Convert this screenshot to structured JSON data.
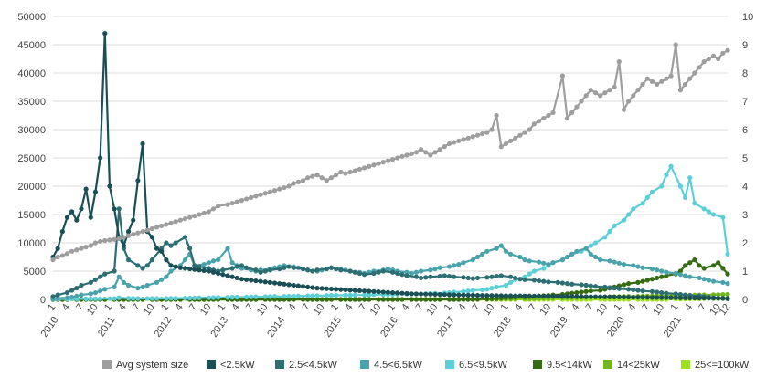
{
  "chart_data": {
    "type": "line",
    "title": "",
    "xlabel": "",
    "ylabel": "",
    "ylim_left": [
      0,
      50000
    ],
    "ylim_right": [
      0,
      10
    ],
    "yticks_left": [
      "0",
      "5000",
      "10000",
      "15000",
      "20000",
      "25000",
      "30000",
      "35000",
      "40000",
      "45000",
      "50000"
    ],
    "yticks_right": [
      "0",
      "1",
      "2",
      "3",
      "4",
      "5",
      "6",
      "7",
      "8",
      "9",
      "10"
    ],
    "grid": true,
    "legend_position": "bottom",
    "x_start": "2010-01",
    "x_end": "2021-12",
    "x_tick_months": [
      "1",
      "4",
      "7",
      "10"
    ],
    "x_tick_last": "12",
    "year_labels": [
      "2010",
      "2011",
      "2012",
      "2013",
      "2014",
      "2015",
      "2016",
      "2017",
      "2018",
      "2019",
      "2020",
      "2021"
    ],
    "series": [
      {
        "name": "Avg system size",
        "axis": "right",
        "color": "#9e9e9e",
        "values": [
          1.4,
          1.5,
          1.55,
          1.62,
          1.7,
          1.75,
          1.8,
          1.85,
          1.9,
          2.0,
          2.05,
          2.08,
          2.1,
          2.12,
          2.15,
          2.2,
          2.25,
          2.3,
          2.35,
          2.4,
          2.45,
          2.5,
          2.55,
          2.6,
          2.65,
          2.7,
          2.75,
          2.8,
          2.85,
          2.9,
          2.95,
          3.0,
          3.05,
          3.1,
          3.2,
          3.3,
          3.35,
          3.4,
          3.45,
          3.5,
          3.55,
          3.6,
          3.65,
          3.7,
          3.75,
          3.8,
          3.85,
          3.9,
          3.95,
          4.0,
          4.1,
          4.15,
          4.2,
          4.3,
          4.35,
          4.4,
          4.3,
          4.2,
          4.3,
          4.4,
          4.5,
          4.45,
          4.5,
          4.55,
          4.6,
          4.65,
          4.7,
          4.75,
          4.8,
          4.85,
          4.9,
          4.95,
          5.0,
          5.05,
          5.1,
          5.15,
          5.2,
          5.3,
          5.2,
          5.1,
          5.2,
          5.3,
          5.4,
          5.5,
          5.55,
          5.6,
          5.65,
          5.7,
          5.75,
          5.8,
          5.85,
          5.9,
          6.0,
          6.5,
          5.4,
          5.5,
          5.6,
          5.7,
          5.8,
          5.9,
          6.0,
          6.2,
          6.3,
          6.4,
          6.5,
          6.6,
          7.9,
          6.4,
          6.6,
          6.8,
          7.0,
          7.2,
          7.4,
          7.3,
          7.2,
          7.3,
          7.4,
          7.5,
          8.4,
          6.7,
          7.0,
          7.2,
          7.4,
          7.6,
          7.8,
          7.7,
          7.6,
          7.7,
          7.8,
          7.9,
          9.0,
          7.4,
          7.6,
          7.8,
          8.0,
          8.2,
          8.4,
          8.5,
          8.6,
          8.5,
          8.7,
          8.8
        ],
        "note": "monthly values Jan 2010 – Dec 2021"
      },
      {
        "name": "<2.5kW",
        "axis": "left",
        "color": "#1a4f55",
        "values": [
          7500,
          9000,
          12000,
          14500,
          15500,
          14000,
          16000,
          19500,
          14500,
          19000,
          25000,
          47000,
          20000,
          16000,
          11000,
          9500,
          12000,
          14000,
          21000,
          27500,
          12000,
          11000,
          9000,
          8500,
          7000,
          6000,
          5800,
          5600,
          5500,
          5400,
          5300,
          5200,
          5100,
          5000,
          4800,
          4600,
          4400,
          4200,
          4000,
          3800,
          3600,
          3500,
          3400,
          3300,
          3200,
          3100,
          3000,
          2900,
          2800,
          2700,
          2600,
          2500,
          2400,
          2300,
          2200,
          2100,
          2000,
          1950,
          1900,
          1850,
          1800,
          1750,
          1700,
          1650,
          1600,
          1550,
          1500,
          1450,
          1400,
          1350,
          1300,
          1250,
          1200,
          1150,
          1100,
          1050,
          1000,
          980,
          960,
          940,
          920,
          900,
          880,
          860,
          840,
          820,
          800,
          780,
          760,
          740,
          720,
          700,
          690,
          680,
          670,
          660,
          650,
          640,
          630,
          620,
          610,
          600,
          590,
          580,
          570,
          560,
          550,
          540,
          530,
          520,
          510,
          500,
          490,
          480,
          470,
          460,
          450,
          440,
          430,
          420,
          410,
          400,
          390,
          380,
          370,
          360,
          350,
          340,
          330,
          320,
          310,
          300,
          290,
          280,
          270,
          260,
          250,
          240,
          230,
          220,
          210,
          200,
          190,
          180
        ]
      },
      {
        "name": "2.5<4.5kW",
        "axis": "left",
        "color": "#2d6e73",
        "values": [
          500,
          800,
          1200,
          1600,
          2000,
          2500,
          3000,
          3500,
          4000,
          4500,
          5000,
          16000,
          9000,
          7000,
          6000,
          5500,
          6000,
          7000,
          9000,
          10000,
          9500,
          10000,
          11000,
          9000,
          6000,
          5800,
          5500,
          5200,
          5000,
          5200,
          5500,
          5800,
          6000,
          5600,
          5200,
          4800,
          5000,
          5200,
          5400,
          5600,
          5800,
          5600,
          5400,
          5200,
          5000,
          5200,
          5400,
          5600,
          5400,
          5200,
          5000,
          4800,
          4600,
          4400,
          4600,
          4800,
          5000,
          4800,
          4600,
          4400,
          4200,
          4000,
          3800,
          3900,
          4000,
          4100,
          4200,
          4100,
          4000,
          3900,
          3800,
          3700,
          3800,
          3900,
          4000,
          4100,
          4200,
          4000,
          3800,
          3600,
          3500,
          3400,
          3300,
          3200,
          3100,
          3000,
          2900,
          2800,
          2700,
          2600,
          2500,
          2400,
          2300,
          2200,
          2100,
          2000,
          1900,
          1800,
          1700,
          1600,
          1500,
          1400,
          1300,
          1200,
          1100,
          1000,
          900,
          800,
          700,
          600,
          500,
          400,
          300,
          200,
          100
        ]
      },
      {
        "name": "4.5<6.5kW",
        "axis": "left",
        "color": "#4aa3ab",
        "values": [
          100,
          200,
          300,
          400,
          600,
          800,
          1000,
          1200,
          1500,
          1800,
          2200,
          4000,
          3000,
          2500,
          2000,
          2200,
          2500,
          3000,
          3500,
          4000,
          5000,
          6000,
          7000,
          8000,
          6000,
          6200,
          6500,
          6800,
          7000,
          9000,
          6500,
          6000,
          5500,
          5200,
          5000,
          5200,
          5400,
          5600,
          5800,
          6000,
          5800,
          5600,
          5400,
          5200,
          5000,
          5200,
          5400,
          5600,
          5400,
          5200,
          5000,
          4800,
          4600,
          4800,
          5000,
          5200,
          5400,
          5200,
          5000,
          4800,
          4600,
          4800,
          5000,
          5200,
          5400,
          5600,
          5800,
          6000,
          6200,
          6500,
          7000,
          7500,
          8000,
          8500,
          9000,
          9500,
          8500,
          8000,
          7500,
          7000,
          6800,
          6600,
          6400,
          6200,
          6500,
          7000,
          7500,
          8000,
          8500,
          9000,
          8000,
          7500,
          7000,
          6800,
          6600,
          6400,
          6200,
          6000,
          5800,
          5600,
          5400,
          5200,
          5000,
          4800,
          4600,
          4400,
          4200,
          4000,
          3800,
          3600,
          3400,
          3200,
          3000,
          2800
        ]
      },
      {
        "name": "6.5<9.5kW",
        "axis": "left",
        "color": "#5dcfd6",
        "values": [
          50,
          60,
          70,
          80,
          90,
          100,
          110,
          120,
          130,
          140,
          150,
          300,
          200,
          180,
          160,
          150,
          160,
          170,
          180,
          190,
          200,
          220,
          240,
          260,
          280,
          300,
          320,
          340,
          360,
          380,
          400,
          420,
          440,
          460,
          480,
          500,
          520,
          540,
          560,
          580,
          600,
          620,
          640,
          660,
          680,
          700,
          720,
          740,
          760,
          780,
          800,
          820,
          840,
          860,
          880,
          900,
          920,
          940,
          960,
          980,
          1000,
          1050,
          1100,
          1150,
          1200,
          1300,
          1400,
          1500,
          1600,
          1700,
          1800,
          2000,
          2200,
          2500,
          3000,
          3500,
          4000,
          4500,
          5000,
          5500,
          6000,
          6500,
          7000,
          7500,
          8000,
          8500,
          9000,
          9500,
          10000,
          11000,
          12000,
          13000,
          14000,
          15000,
          16000,
          17000,
          18000,
          19000,
          20000,
          22000,
          23500,
          20000,
          18000,
          21500,
          17000,
          16000,
          15500,
          15000,
          14500,
          8000
        ]
      },
      {
        "name": "9.5<14kW",
        "axis": "left",
        "color": "#356b12",
        "values": [
          0,
          0,
          0,
          0,
          0,
          0,
          0,
          0,
          0,
          0,
          0,
          0,
          0,
          0,
          0,
          0,
          0,
          0,
          0,
          0,
          0,
          0,
          0,
          0,
          0,
          0,
          0,
          0,
          0,
          0,
          0,
          0,
          0,
          0,
          0,
          0,
          0,
          0,
          0,
          0,
          0,
          0,
          0,
          0,
          0,
          0,
          0,
          0,
          0,
          0,
          0,
          0,
          0,
          0,
          0,
          0,
          0,
          0,
          0,
          0,
          0,
          0,
          0,
          0,
          0,
          0,
          0,
          0,
          0,
          0,
          0,
          0,
          0,
          0,
          0,
          0,
          0,
          0,
          0,
          50,
          100,
          150,
          200,
          250,
          300,
          350,
          400,
          450,
          500,
          550,
          600,
          650,
          700,
          800,
          900,
          1000,
          1100,
          1200,
          1300,
          1400,
          1500,
          1600,
          1800,
          2000,
          2200,
          2400,
          2600,
          2800,
          3000,
          3200,
          3400,
          3600,
          3800,
          4000,
          4200,
          4500,
          5000,
          6000,
          6500,
          7000,
          6000,
          5500,
          6000,
          6500,
          5500,
          4500
        ]
      },
      {
        "name": "14<25kW",
        "axis": "left",
        "color": "#72b61f",
        "values": [
          0,
          0,
          0,
          0,
          0,
          0,
          0,
          0,
          0,
          0,
          0,
          0,
          0,
          0,
          0,
          0,
          0,
          0,
          0,
          0,
          0,
          0,
          0,
          0,
          0,
          0,
          0,
          0,
          0,
          0,
          0,
          0,
          0,
          0,
          0,
          0,
          0,
          0,
          0,
          0,
          0,
          0,
          0,
          0,
          0,
          0,
          0,
          0,
          0,
          0,
          0,
          0,
          0,
          0,
          0,
          0,
          0,
          0,
          0,
          0,
          0,
          0,
          0,
          0,
          0,
          0,
          0,
          0,
          0,
          0,
          0,
          0,
          0,
          0,
          0,
          0,
          0,
          0,
          0,
          0,
          0,
          20,
          40,
          60,
          80,
          100,
          120,
          140,
          160,
          180,
          200,
          220,
          240,
          260,
          280,
          300,
          320,
          340,
          360,
          380,
          400,
          420,
          440,
          460,
          480,
          500,
          520,
          540,
          560,
          580,
          600,
          620,
          640,
          660,
          680,
          700,
          720,
          740,
          760,
          780,
          800,
          820,
          840,
          860,
          880,
          900
        ]
      },
      {
        "name": "25<=100kW",
        "axis": "left",
        "color": "#9be023",
        "values": [
          0,
          0,
          0,
          0,
          0,
          0,
          0,
          0,
          0,
          0,
          0,
          0,
          0,
          0,
          0,
          0,
          0,
          0,
          0,
          0,
          0,
          0,
          0,
          0,
          0,
          0,
          0,
          0,
          0,
          0,
          0,
          0,
          0,
          0,
          0,
          0,
          0,
          0,
          0,
          0,
          0,
          0,
          0,
          0,
          0,
          0,
          0,
          0,
          0,
          0,
          0,
          0,
          0,
          0,
          0,
          0,
          0,
          0,
          0,
          0,
          0,
          0,
          0,
          0,
          0,
          0,
          0,
          0,
          0,
          0,
          0,
          0,
          0,
          0,
          0,
          0,
          0,
          0,
          0,
          0,
          0,
          0,
          0,
          0,
          0,
          0,
          0,
          0,
          0,
          0,
          0,
          0,
          0,
          0,
          0,
          0,
          0,
          0,
          0,
          0,
          0,
          0,
          0,
          0,
          0,
          0,
          0,
          0,
          0,
          0,
          0,
          0,
          0,
          0,
          0,
          50,
          60,
          70,
          80,
          90,
          100,
          110,
          120,
          130,
          140,
          150
        ]
      }
    ]
  }
}
